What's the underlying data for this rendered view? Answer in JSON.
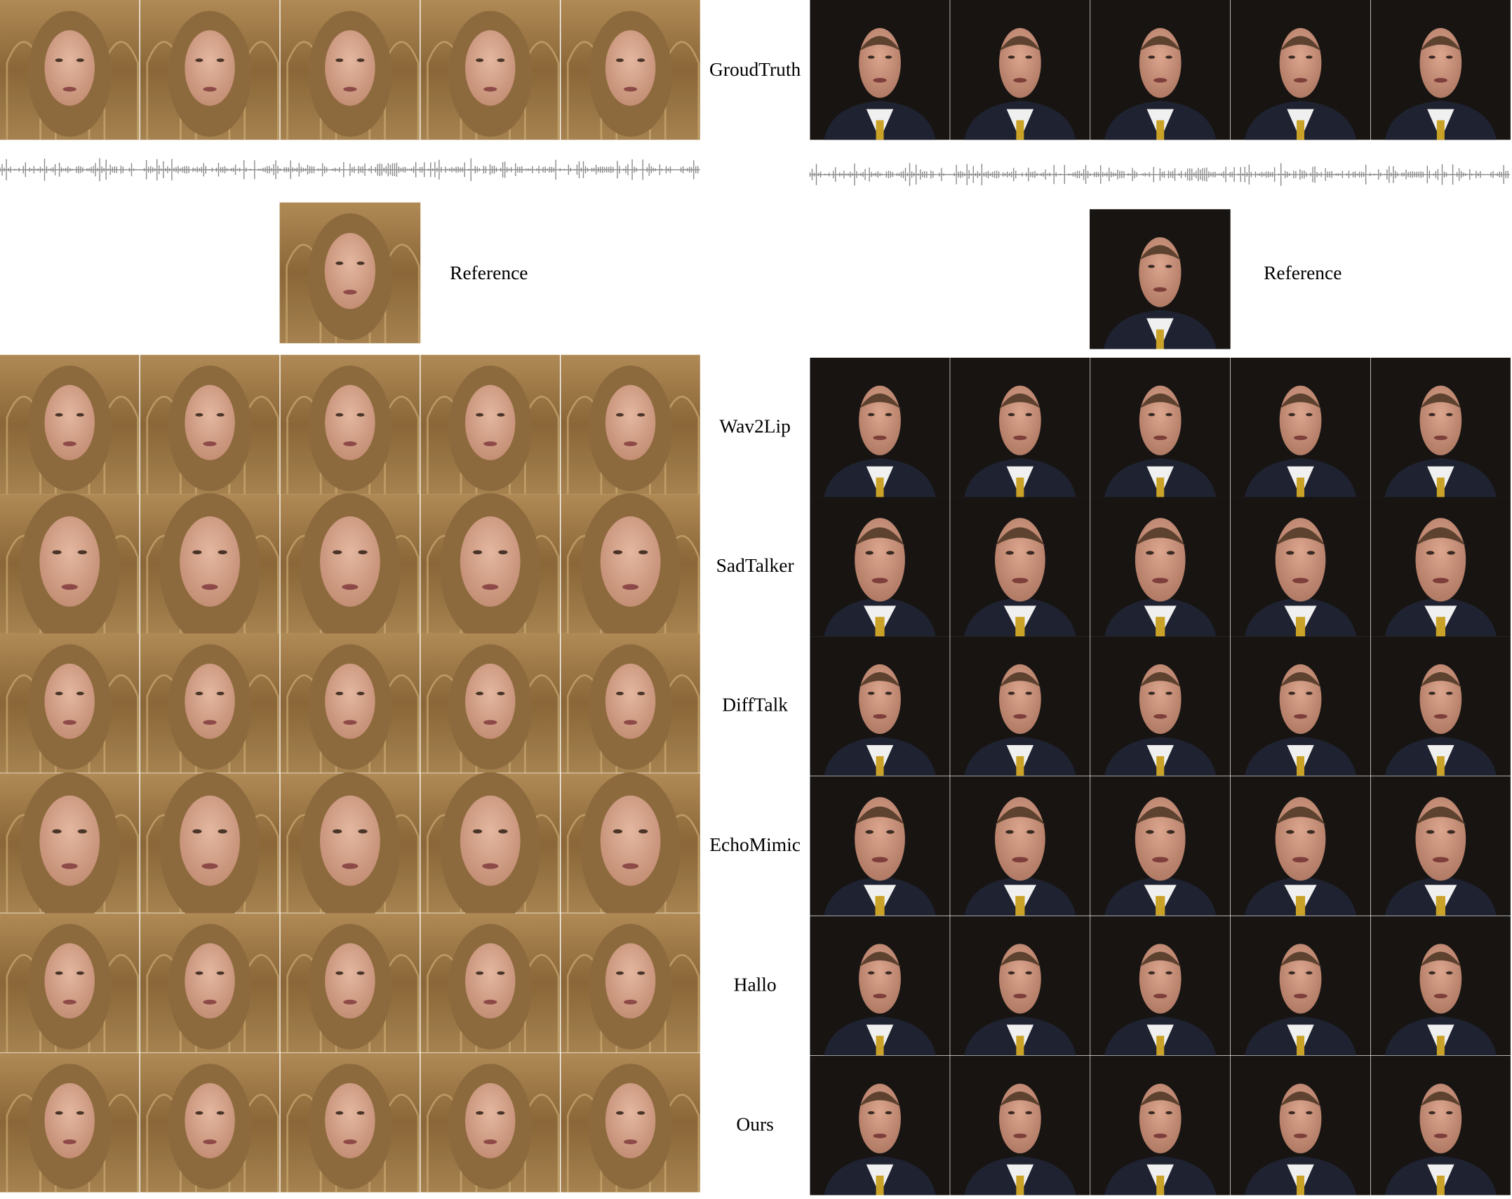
{
  "labels": {
    "ground_truth": "GroudTruth",
    "reference_left": "Reference",
    "reference_right": "Reference"
  },
  "methods": [
    "Wav2Lip",
    "SadTalker",
    "DiffTalk",
    "EchoMimic",
    "Hallo",
    "Ours"
  ]
}
